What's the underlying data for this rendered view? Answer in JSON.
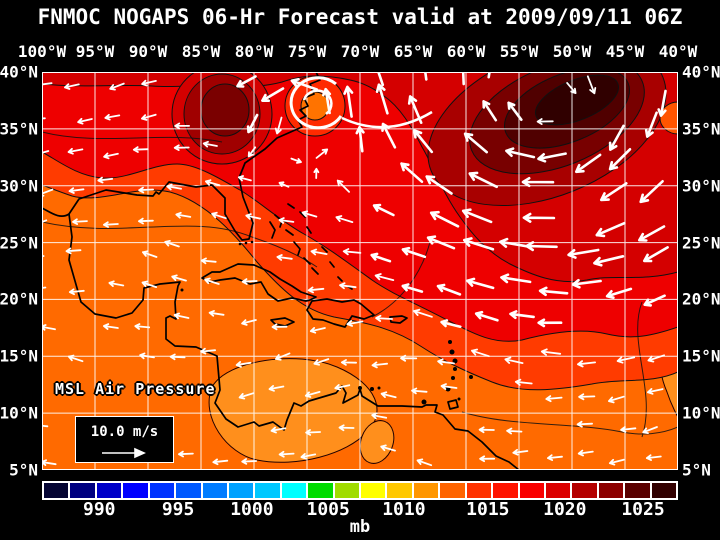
{
  "title": "FNMOC NOGAPS 06-Hr Forecast valid at 2009/09/11 06Z",
  "map": {
    "overlay_label": "MSL Air Pressure",
    "wind_legend_label": "10.0 m/s",
    "top_axis_labels": [
      "100°W",
      "95°W",
      "90°W",
      "85°W",
      "80°W",
      "75°W",
      "70°W",
      "65°W",
      "60°W",
      "55°W",
      "50°W",
      "45°W",
      "40°W"
    ],
    "left_axis_labels": [
      "40°N",
      "35°N",
      "30°N",
      "25°N",
      "20°N",
      "15°N",
      "10°N",
      "5°N"
    ],
    "right_axis_labels": [
      "40°N",
      "35°N",
      "30°N",
      "25°N",
      "20°N",
      "15°N",
      "10°N",
      "5°N"
    ]
  },
  "colorbar": {
    "unit_label": "mb",
    "ticks": [
      {
        "label": "990",
        "pos_pct": 9.0
      },
      {
        "label": "995",
        "pos_pct": 21.4
      },
      {
        "label": "1000",
        "pos_pct": 33.0
      },
      {
        "label": "1005",
        "pos_pct": 45.0
      },
      {
        "label": "1010",
        "pos_pct": 56.9
      },
      {
        "label": "1015",
        "pos_pct": 70.1
      },
      {
        "label": "1020",
        "pos_pct": 82.2
      },
      {
        "label": "1025",
        "pos_pct": 94.5
      }
    ],
    "cell_colors": [
      "#050533",
      "#000080",
      "#0000C8",
      "#0000FF",
      "#0033FF",
      "#0059FF",
      "#007CFF",
      "#00A2FF",
      "#00C8FF",
      "#00FFFF",
      "#00DC00",
      "#A0DC00",
      "#FFFF00",
      "#FFC800",
      "#FF9600",
      "#FF6400",
      "#FF3200",
      "#FF1400",
      "#FA0000",
      "#DC0000",
      "#B40000",
      "#8C0000",
      "#5A0000",
      "#320000"
    ]
  },
  "field_colors": {
    "orange": "#FF6A00",
    "light_orange": "#FF8F1C",
    "orange_red": "#FF3B00",
    "red": "#EE0000",
    "dark_red": "#D40000",
    "darker_red": "#A80000",
    "maroon": "#780000",
    "dark_maroon": "#500000",
    "darkest": "#300000",
    "maroon_blob_outer": "#A00000",
    "maroon_blob_inner": "#7A0000",
    "cyclone_ring": "#FF2A00",
    "cyclone_core": "#FF7300",
    "edge_notch": "#FF5500",
    "grid": "#FFFFFF",
    "coast": "#000000",
    "arrow": "#FFFFFF"
  }
}
